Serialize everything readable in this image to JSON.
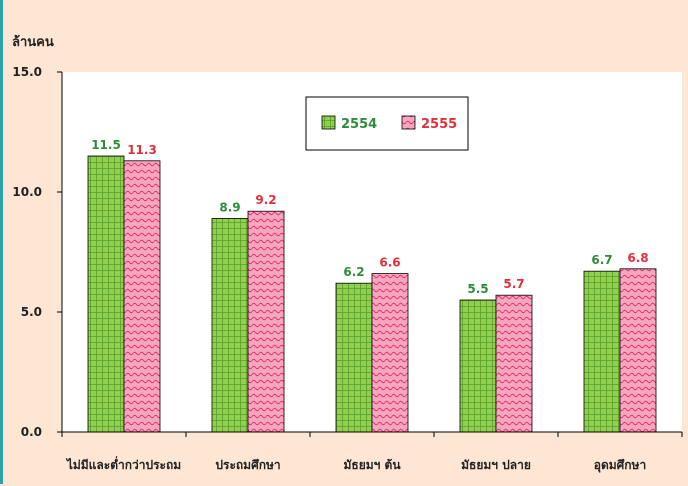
{
  "chart_data": {
    "type": "bar",
    "ylabel": "ล้านคน",
    "ylim": [
      0,
      15
    ],
    "yticks": [
      "0.0",
      "5.0",
      "10.0",
      "15.0"
    ],
    "ytick_values": [
      0,
      5,
      10,
      15
    ],
    "categories": [
      "ไม่มีและต่ำกว่าประถม",
      "ประถมศึกษา",
      "มัธยมฯ ต้น",
      "มัธยมฯ ปลาย",
      "อุดมศึกษา"
    ],
    "series": [
      {
        "name": "2554",
        "values": [
          11.5,
          8.9,
          6.2,
          5.5,
          6.7
        ],
        "labels": [
          "11.5",
          "8.9",
          "6.2",
          "5.5",
          "6.7"
        ],
        "color": "#8fd14f",
        "label_color": "#2e8b3a"
      },
      {
        "name": "2555",
        "values": [
          11.3,
          9.2,
          6.6,
          5.7,
          6.8
        ],
        "labels": [
          "11.3",
          "9.2",
          "6.6",
          "5.7",
          "6.8"
        ],
        "color": "#f7a6c0",
        "label_color": "#e0303a"
      }
    ],
    "grid": false,
    "legend": "top-center"
  }
}
